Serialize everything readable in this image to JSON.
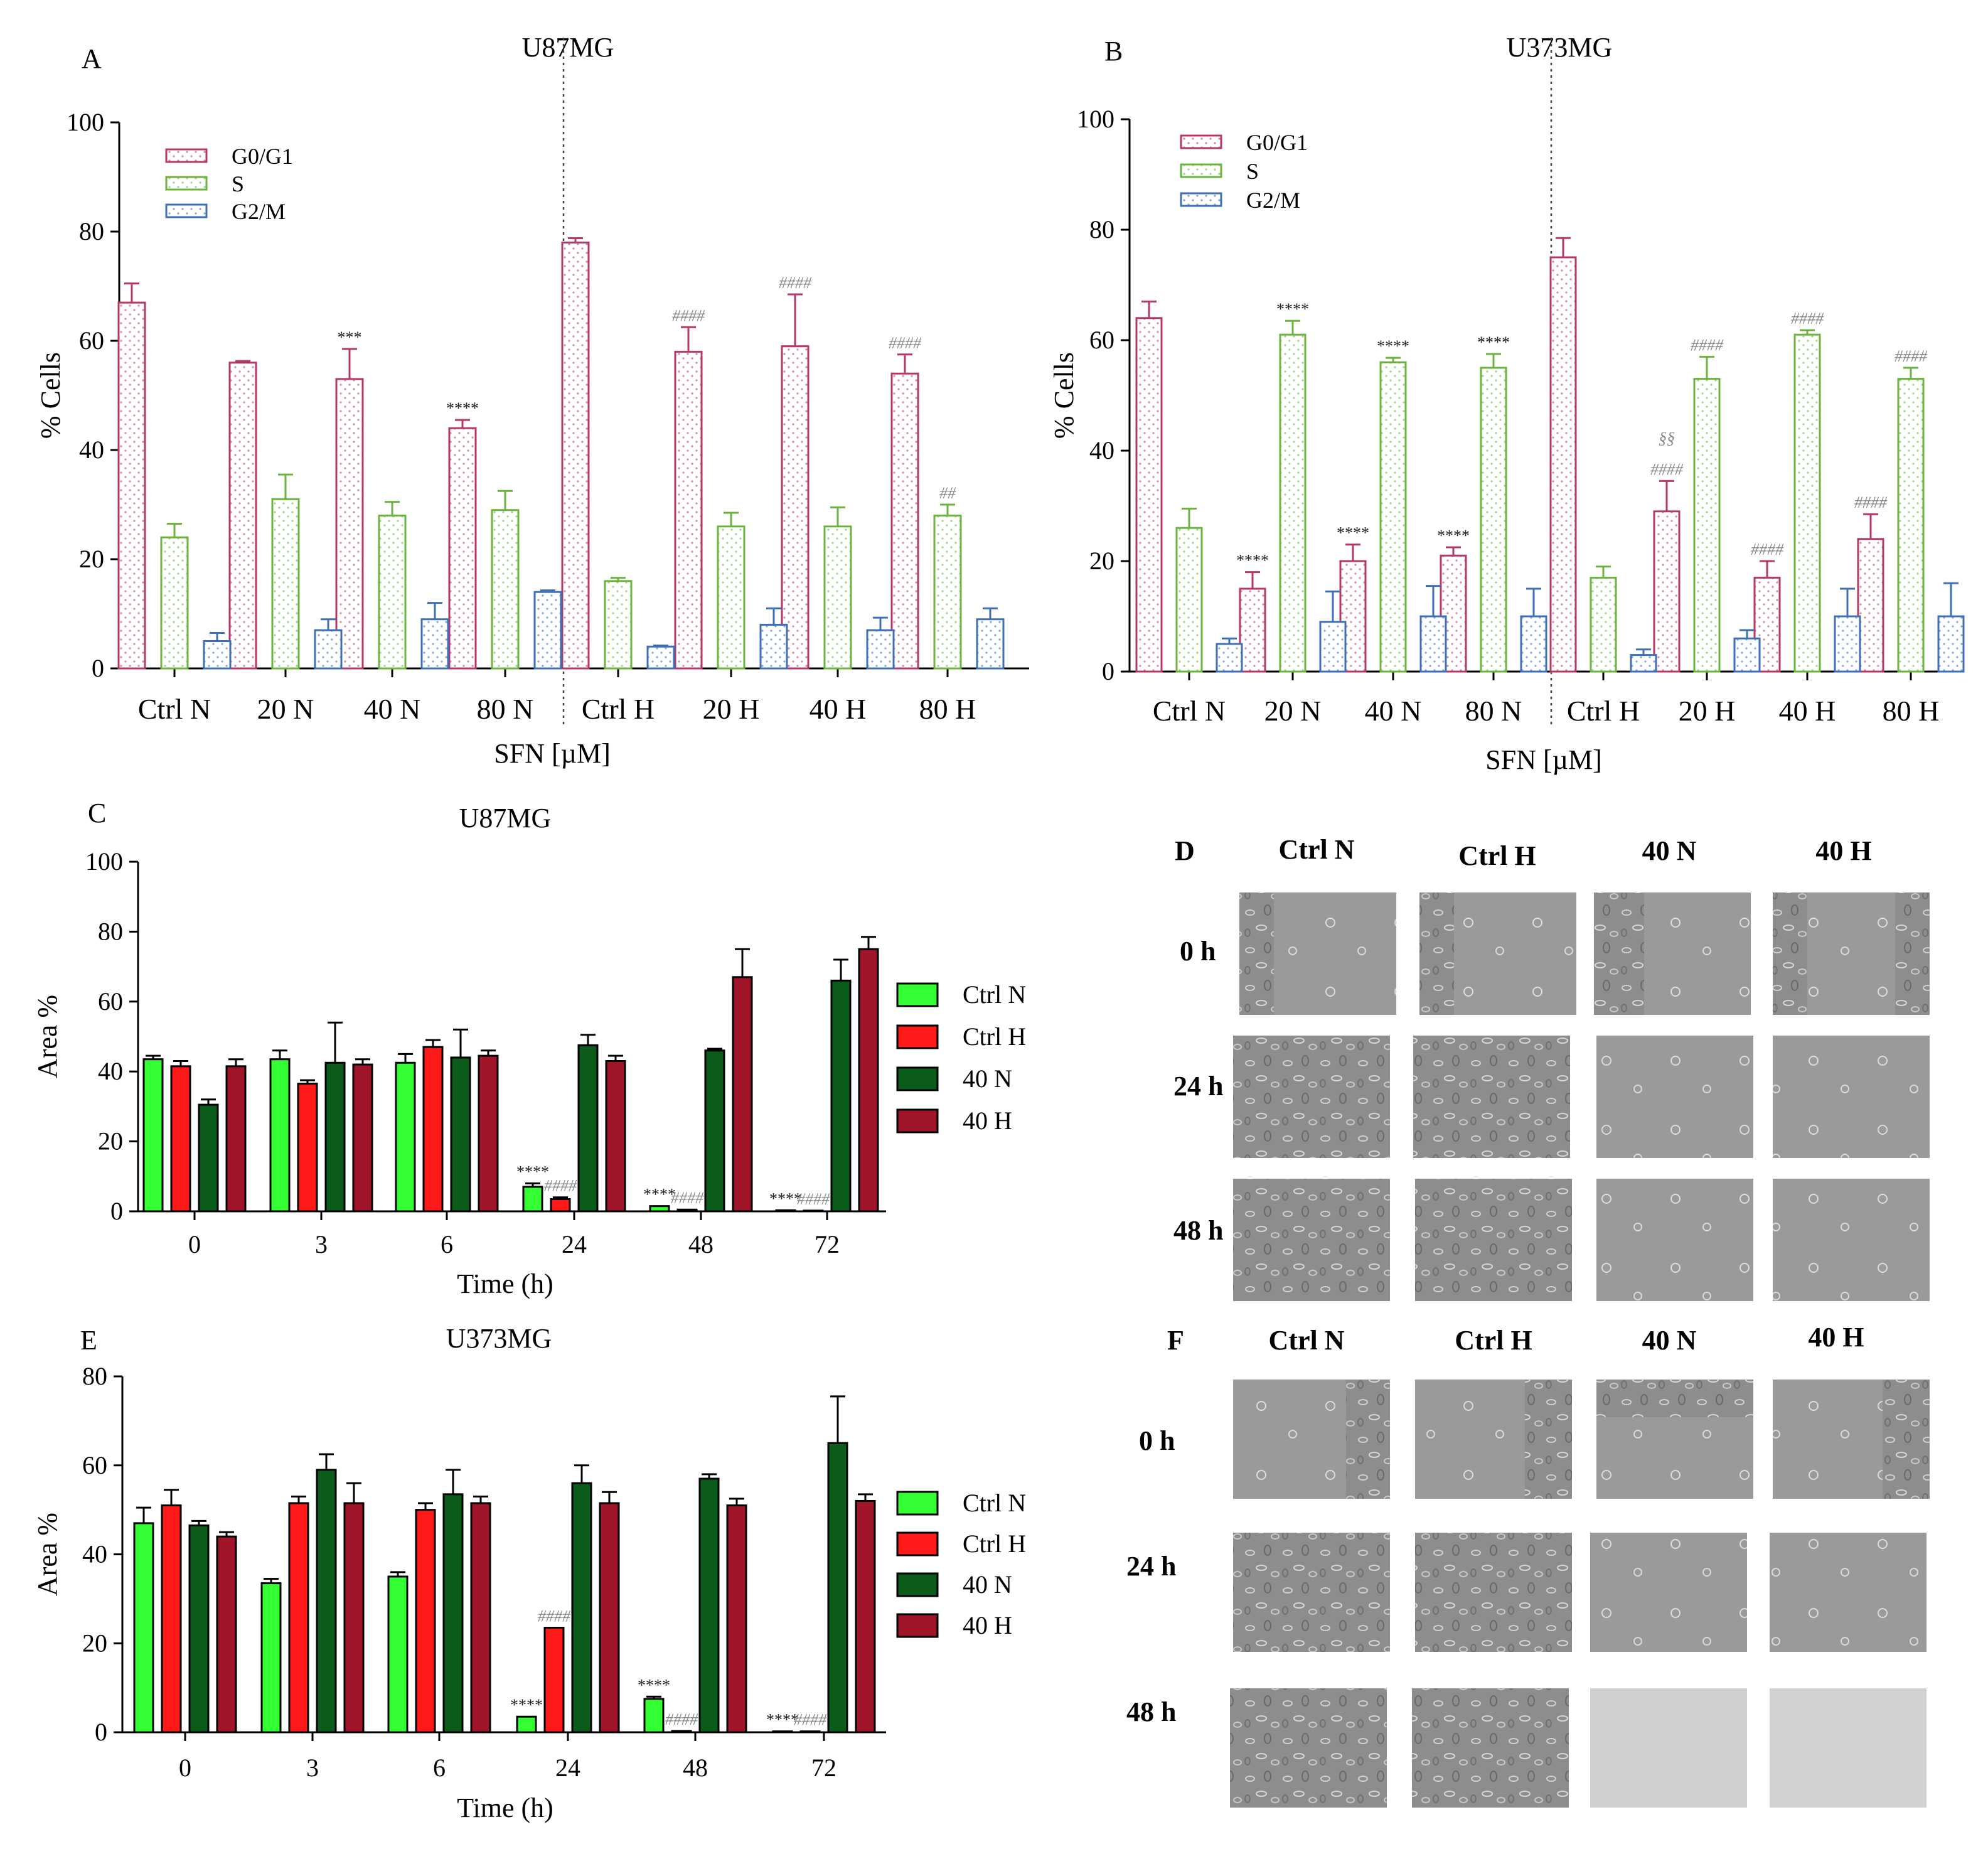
{
  "colors": {
    "g0g1": "#b5386b",
    "s": "#6db33f",
    "g2m": "#3f6fb5",
    "ctrl_n": "#33ff33",
    "ctrl_h": "#ff1a1a",
    "n40": "#0b5c1b",
    "h40": "#a01529",
    "sig_dark": "#222222",
    "sig_hash": "#888888"
  },
  "panels": {
    "A": {
      "letter": "A"
    },
    "B": {
      "letter": "B"
    },
    "C": {
      "letter": "C"
    },
    "D": {
      "letter": "D"
    },
    "E": {
      "letter": "E"
    },
    "F": {
      "letter": "F"
    }
  },
  "micro": {
    "D": {
      "columns": [
        "Ctrl N",
        "Ctrl H",
        "40 N",
        "40 H"
      ],
      "rows": [
        "0 h",
        "24 h",
        "48 h"
      ]
    },
    "F": {
      "columns": [
        "Ctrl N",
        "Ctrl H",
        "40 N",
        "40 H"
      ],
      "rows": [
        "0 h",
        "24 h",
        "48 h"
      ]
    }
  },
  "chart_data": [
    {
      "id": "A",
      "type": "bar",
      "title": "U87MG",
      "xlabel": "SFN [µM]",
      "ylabel": "% Cells",
      "ylim": [
        0,
        100
      ],
      "yticks": [
        "0",
        "20",
        "40",
        "60",
        "80",
        "100"
      ],
      "categories": [
        "Ctrl N",
        "20 N",
        "40 N",
        "80 N",
        "Ctrl H",
        "20 H",
        "40 H",
        "80 H"
      ],
      "legend": [
        "G0/G1",
        "S",
        "G2/M"
      ],
      "series": [
        {
          "name": "G0/G1",
          "values": [
            67,
            56,
            53,
            44,
            78,
            58,
            59,
            54
          ],
          "errors": [
            3.5,
            0.3,
            5.5,
            1.5,
            0.8,
            4.5,
            9.5,
            3.5
          ]
        },
        {
          "name": "S",
          "values": [
            24,
            31,
            28,
            29,
            16,
            26,
            26,
            28
          ],
          "errors": [
            2.5,
            4.5,
            2.5,
            3.5,
            0.6,
            2.5,
            3.5,
            2
          ]
        },
        {
          "name": "G2/M",
          "values": [
            5,
            7,
            9,
            14,
            4,
            8,
            7,
            9
          ],
          "errors": [
            1.5,
            2,
            3,
            0.3,
            0.2,
            3,
            2.3,
            2
          ]
        }
      ],
      "annotations": [
        {
          "text": "***",
          "category": 2,
          "series": 0
        },
        {
          "text": "****",
          "category": 3,
          "series": 0
        },
        {
          "text": "####",
          "category": 5,
          "series": 0
        },
        {
          "text": "####",
          "category": 6,
          "series": 0
        },
        {
          "text": "####",
          "category": 7,
          "series": 0
        },
        {
          "text": "##",
          "category": 7,
          "series": 1
        }
      ]
    },
    {
      "id": "B",
      "type": "bar",
      "title": "U373MG",
      "xlabel": "SFN [µM]",
      "ylabel": "% Cells",
      "ylim": [
        0,
        100
      ],
      "yticks": [
        "0",
        "20",
        "40",
        "60",
        "80",
        "100"
      ],
      "categories": [
        "Ctrl N",
        "20 N",
        "40 N",
        "80 N",
        "Ctrl H",
        "20 H",
        "40 H",
        "80 H"
      ],
      "legend": [
        "G0/G1",
        "S",
        "G2/M"
      ],
      "series": [
        {
          "name": "G0/G1",
          "values": [
            64,
            15,
            20,
            21,
            75,
            29,
            17,
            24
          ],
          "errors": [
            3,
            3,
            3,
            1.5,
            3.5,
            5.5,
            3,
            4.5
          ]
        },
        {
          "name": "S",
          "values": [
            26,
            61,
            56,
            55,
            17,
            53,
            61,
            53
          ],
          "errors": [
            3.5,
            2.5,
            0.8,
            2.5,
            2,
            4,
            0.8,
            2
          ]
        },
        {
          "name": "G2/M",
          "values": [
            5,
            9,
            10,
            10,
            3,
            6,
            10,
            10
          ],
          "errors": [
            1,
            5.5,
            5.5,
            5,
            1,
            1.5,
            5,
            6
          ]
        }
      ],
      "annotations": [
        {
          "text": "****",
          "category": 1,
          "series": 0
        },
        {
          "text": "****",
          "category": 2,
          "series": 0
        },
        {
          "text": "****",
          "category": 3,
          "series": 0
        },
        {
          "text": "####",
          "category": 5,
          "series": 0
        },
        {
          "text": "§§",
          "category": 5,
          "series": 0,
          "level": 2
        },
        {
          "text": "####",
          "category": 6,
          "series": 0
        },
        {
          "text": "####",
          "category": 7,
          "series": 0
        },
        {
          "text": "****",
          "category": 1,
          "series": 1
        },
        {
          "text": "****",
          "category": 2,
          "series": 1
        },
        {
          "text": "****",
          "category": 3,
          "series": 1
        },
        {
          "text": "####",
          "category": 5,
          "series": 1
        },
        {
          "text": "####",
          "category": 6,
          "series": 1
        },
        {
          "text": "####",
          "category": 7,
          "series": 1
        }
      ]
    },
    {
      "id": "C",
      "type": "bar",
      "title": "U87MG",
      "xlabel": "Time (h)",
      "ylabel": "Area %",
      "ylim": [
        0,
        100
      ],
      "yticks": [
        "0",
        "20",
        "40",
        "60",
        "80",
        "100"
      ],
      "categories": [
        "0",
        "3",
        "6",
        "24",
        "48",
        "72"
      ],
      "legend": [
        "Ctrl N",
        "Ctrl H",
        "40 N",
        "40 H"
      ],
      "series": [
        {
          "name": "Ctrl N",
          "values": [
            43.5,
            43.5,
            42.5,
            7,
            1.5,
            0.3
          ],
          "errors": [
            1,
            2.5,
            2.5,
            1,
            0,
            0
          ]
        },
        {
          "name": "Ctrl H",
          "values": [
            41.5,
            36.5,
            47,
            3.5,
            0.5,
            0.2
          ],
          "errors": [
            1.5,
            1,
            2,
            0.5,
            0,
            0
          ]
        },
        {
          "name": "40 N",
          "values": [
            30.5,
            42.5,
            44,
            47.5,
            46,
            66
          ],
          "errors": [
            1.5,
            11.5,
            8,
            3,
            0.5,
            6
          ]
        },
        {
          "name": "40 H",
          "values": [
            41.5,
            42,
            44.5,
            43,
            67,
            75
          ],
          "errors": [
            2,
            1.5,
            1.5,
            1.5,
            8,
            3.5
          ]
        }
      ],
      "annotations": [
        {
          "text": "****",
          "category": 3,
          "series": 0
        },
        {
          "text": "####",
          "category": 3,
          "series": 1
        },
        {
          "text": "****",
          "category": 4,
          "series": 0
        },
        {
          "text": "####",
          "category": 4,
          "series": 1
        },
        {
          "text": "****",
          "category": 5,
          "series": 0
        },
        {
          "text": "####",
          "category": 5,
          "series": 1
        }
      ]
    },
    {
      "id": "E",
      "type": "bar",
      "title": "U373MG",
      "xlabel": "Time (h)",
      "ylabel": "Area %",
      "ylim": [
        0,
        80
      ],
      "yticks": [
        "0",
        "20",
        "40",
        "60",
        "80"
      ],
      "categories": [
        "0",
        "3",
        "6",
        "24",
        "48",
        "72"
      ],
      "legend": [
        "Ctrl N",
        "Ctrl H",
        "40 N",
        "40 H"
      ],
      "series": [
        {
          "name": "Ctrl N",
          "values": [
            47,
            33.5,
            35,
            3.5,
            7.5,
            0.2
          ],
          "errors": [
            3.5,
            1,
            1,
            0,
            0.5,
            0
          ]
        },
        {
          "name": "Ctrl H",
          "values": [
            51,
            51.5,
            50,
            23.5,
            0.3,
            0.2
          ],
          "errors": [
            3.5,
            1.5,
            1.5,
            0,
            0,
            0
          ]
        },
        {
          "name": "40 N",
          "values": [
            46.5,
            59,
            53.5,
            56,
            57,
            65
          ],
          "errors": [
            1,
            3.5,
            5.5,
            4,
            1,
            10.5
          ]
        },
        {
          "name": "40 H",
          "values": [
            44,
            51.5,
            51.5,
            51.5,
            51,
            52
          ],
          "errors": [
            1,
            4.5,
            1.5,
            2.5,
            1.5,
            1.5
          ]
        }
      ],
      "annotations": [
        {
          "text": "****",
          "category": 3,
          "series": 0
        },
        {
          "text": "####",
          "category": 3,
          "series": 1
        },
        {
          "text": "****",
          "category": 4,
          "series": 0
        },
        {
          "text": "####",
          "category": 4,
          "series": 1
        },
        {
          "text": "****",
          "category": 5,
          "series": 0
        },
        {
          "text": "####",
          "category": 5,
          "series": 1
        }
      ]
    }
  ]
}
